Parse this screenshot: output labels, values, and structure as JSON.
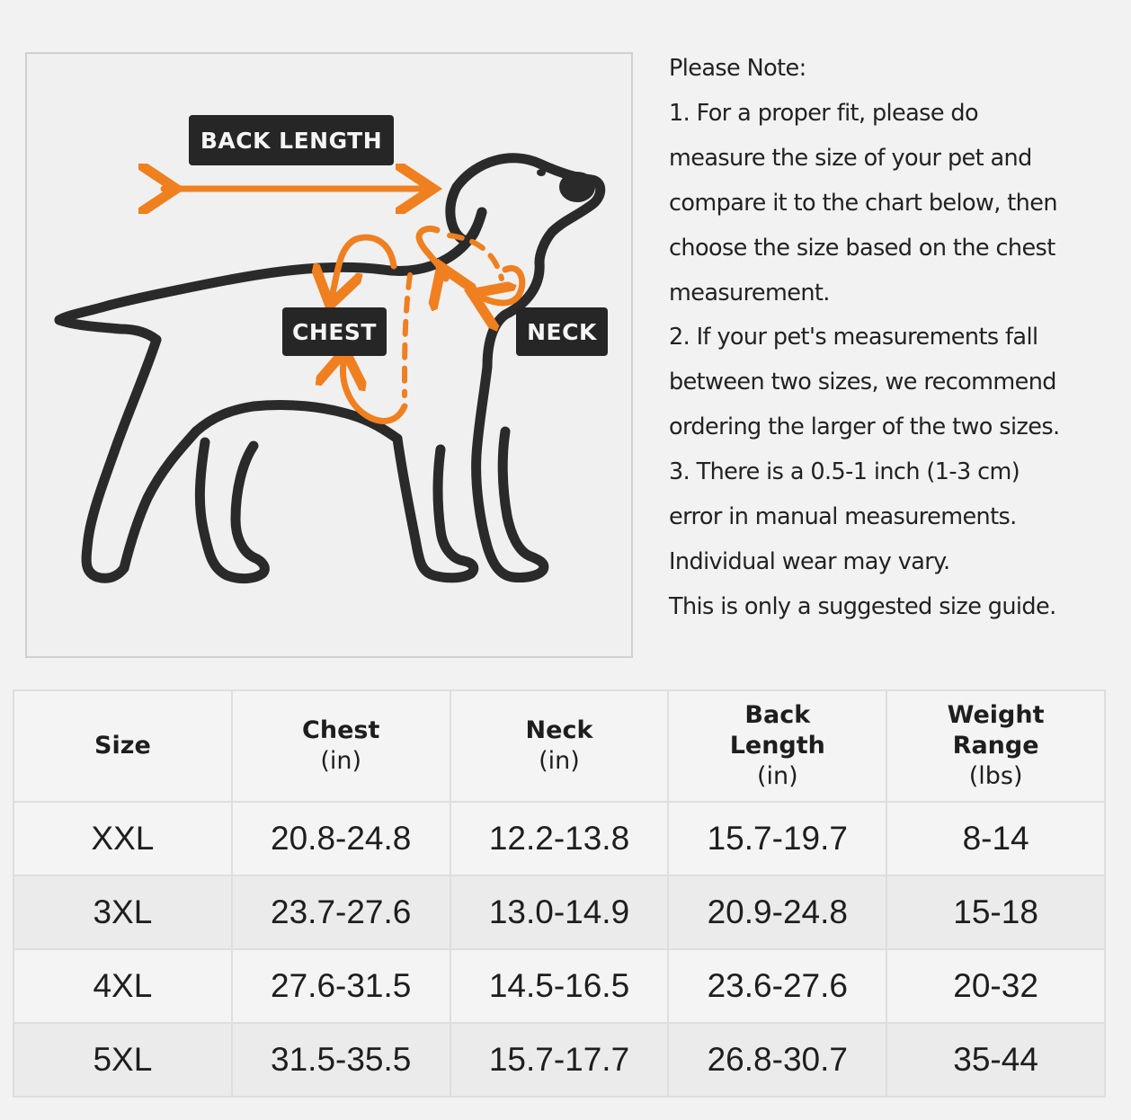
{
  "diagram": {
    "labels": {
      "back_length": "BACK LENGTH",
      "chest": "CHEST",
      "neck": "NECK"
    },
    "icons": [
      "dog-outline-icon",
      "arrow-icon"
    ],
    "colors": {
      "accent": "#f07f1f",
      "outline": "#2a2a2a",
      "label_bg": "#262626"
    }
  },
  "notes": [
    "Please Note:",
    "1. For a proper fit, please do",
    "measure the size of your pet and",
    "compare it to the chart below, then",
    "choose the size based on the chest",
    "measurement.",
    "2. If your pet's measurements fall",
    "between two sizes, we recommend",
    "ordering the larger of the two sizes.",
    "3. There is a 0.5-1 inch (1-3 cm)",
    "error in manual measurements.",
    "Individual wear may vary.",
    "This is only a suggested size guide."
  ],
  "table": {
    "headers": [
      [
        "Size"
      ],
      [
        "Chest",
        "(in)"
      ],
      [
        "Neck",
        "(in)"
      ],
      [
        "Back",
        "Length",
        "(in)"
      ],
      [
        "Weight",
        "Range",
        "(lbs)"
      ]
    ],
    "rows": [
      [
        "XXL",
        "20.8-24.8",
        "12.2-13.8",
        "15.7-19.7",
        "8-14"
      ],
      [
        "3XL",
        "23.7-27.6",
        "13.0-14.9",
        "20.9-24.8",
        "15-18"
      ],
      [
        "4XL",
        "27.6-31.5",
        "14.5-16.5",
        "23.6-27.6",
        "20-32"
      ],
      [
        "5XL",
        "31.5-35.5",
        "15.7-17.7",
        "26.8-30.7",
        "35-44"
      ]
    ]
  }
}
